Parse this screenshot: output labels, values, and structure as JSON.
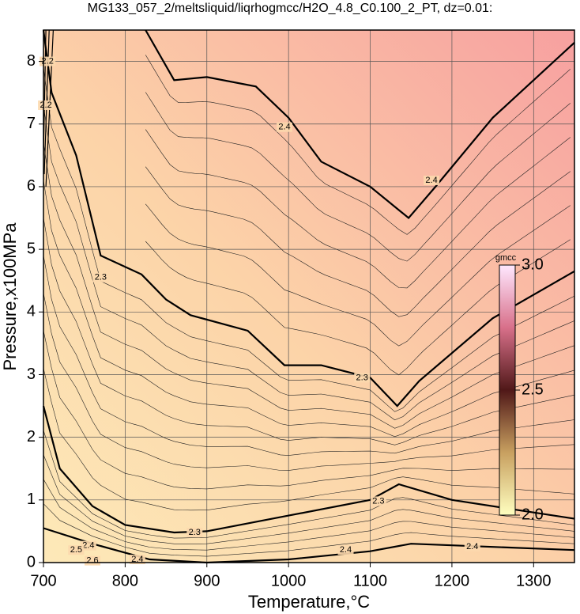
{
  "chart_data": {
    "type": "contour",
    "title": "MG133_057_2/meltsliquid/liqrhogmcc/H2O_4.8_C0.100_2_PT, dz=0.01:",
    "x_label": "Temperature,°C",
    "y_label": "Pressure,x100MPa",
    "xlim": [
      700,
      1350
    ],
    "ylim": [
      0,
      8.5
    ],
    "xticks": [
      700,
      800,
      900,
      1000,
      1100,
      1200,
      1300
    ],
    "yticks": [
      0,
      1,
      2,
      3,
      4,
      5,
      6,
      7,
      8
    ],
    "grid": true,
    "contour_levels": [
      2.2,
      2.3,
      2.4,
      2.5,
      2.6
    ],
    "colorbar": {
      "label": "gmcc",
      "lim": [
        2.0,
        3.0
      ],
      "ticks": [
        {
          "value": 3.0,
          "label": "3.0"
        },
        {
          "value": 2.5,
          "label": "2.5"
        },
        {
          "value": 2.0,
          "label": "2.0"
        }
      ]
    }
  }
}
